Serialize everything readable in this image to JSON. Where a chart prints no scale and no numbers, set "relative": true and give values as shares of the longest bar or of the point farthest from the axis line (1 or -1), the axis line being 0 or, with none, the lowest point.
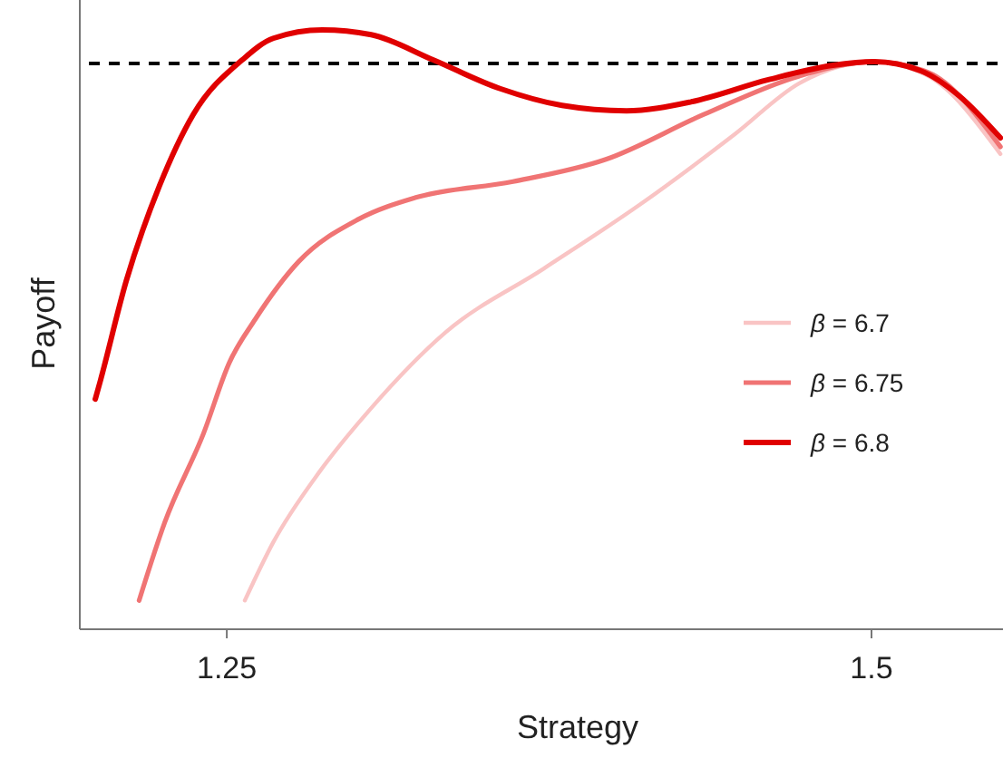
{
  "chart_data": {
    "type": "line",
    "xlabel": "Strategy",
    "ylabel": "Payoff",
    "relative": true,
    "xlim": [
      1.193,
      1.551
    ],
    "xticks": [
      1.25,
      1.5
    ],
    "legend": "right",
    "line_style": "solid",
    "marker": "none",
    "grid": false,
    "ref_lines": [
      {
        "axis": "y",
        "value": 0.944,
        "color": "#000000",
        "line_style": "dashed"
      }
    ],
    "series": [
      {
        "name": "β = 6.7",
        "color": "#f9c4c4",
        "x": [
          1.257,
          1.268,
          1.286,
          1.306,
          1.335,
          1.373,
          1.41,
          1.447,
          1.472,
          1.501,
          1.522,
          1.55
        ],
        "values": [
          0.048,
          0.145,
          0.263,
          0.369,
          0.496,
          0.602,
          0.708,
          0.826,
          0.911,
          0.947,
          0.923,
          0.793
        ]
      },
      {
        "name": "β = 6.75",
        "color": "#f07474",
        "x": [
          1.216,
          1.226,
          1.241,
          1.251,
          1.261,
          1.278,
          1.301,
          1.323,
          1.361,
          1.397,
          1.435,
          1.472,
          1.501,
          1.522,
          1.55
        ],
        "values": [
          0.048,
          0.179,
          0.327,
          0.445,
          0.517,
          0.614,
          0.684,
          0.72,
          0.747,
          0.784,
          0.859,
          0.923,
          0.947,
          0.929,
          0.805
        ]
      },
      {
        "name": "β = 6.8",
        "color": "#e00000",
        "x": [
          1.199,
          1.201,
          1.211,
          1.224,
          1.237,
          1.256,
          1.268,
          1.287,
          1.306,
          1.33,
          1.356,
          1.38,
          1.405,
          1.43,
          1.46,
          1.485,
          1.501,
          1.519,
          1.534,
          1.55
        ],
        "values": [
          0.384,
          0.415,
          0.581,
          0.741,
          0.859,
          0.95,
          0.986,
          1.0,
          0.992,
          0.95,
          0.902,
          0.874,
          0.865,
          0.88,
          0.917,
          0.941,
          0.947,
          0.932,
          0.89,
          0.82
        ]
      }
    ]
  }
}
